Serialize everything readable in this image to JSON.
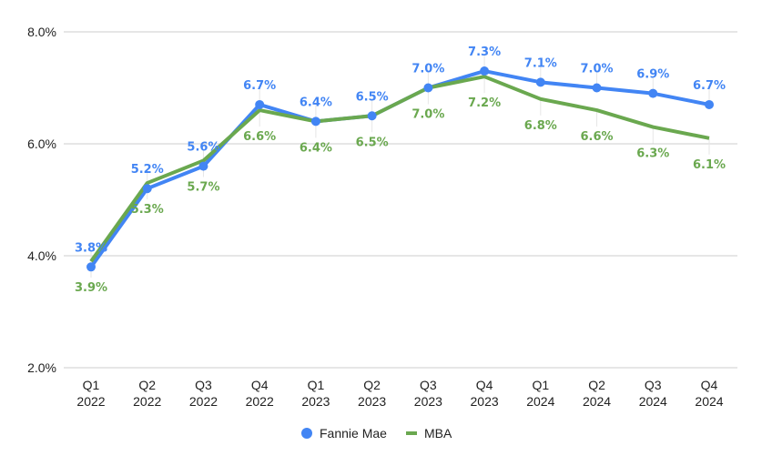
{
  "chart_data": {
    "type": "line",
    "title": "",
    "xlabel": "",
    "ylabel": "",
    "categories": [
      [
        "Q1",
        "2022"
      ],
      [
        "Q2",
        "2022"
      ],
      [
        "Q3",
        "2022"
      ],
      [
        "Q4",
        "2022"
      ],
      [
        "Q1",
        "2023"
      ],
      [
        "Q2",
        "2023"
      ],
      [
        "Q3",
        "2023"
      ],
      [
        "Q4",
        "2023"
      ],
      [
        "Q1",
        "2024"
      ],
      [
        "Q2",
        "2024"
      ],
      [
        "Q3",
        "2024"
      ],
      [
        "Q4",
        "2024"
      ]
    ],
    "ylim": [
      2.0,
      8.0
    ],
    "yticks": [
      2.0,
      4.0,
      6.0,
      8.0
    ],
    "ytick_labels": [
      "2.0%",
      "4.0%",
      "6.0%",
      "8.0%"
    ],
    "grid": true,
    "legend_position": "bottom",
    "series": [
      {
        "name": "Fannie Mae",
        "color": "#4285f4",
        "marker": "circle",
        "label_position": "above",
        "values": [
          3.8,
          5.2,
          5.6,
          6.7,
          6.4,
          6.5,
          7.0,
          7.3,
          7.1,
          7.0,
          6.9,
          6.7
        ],
        "labels": [
          "3.8%",
          "5.2%",
          "5.6%",
          "6.7%",
          "6.4%",
          "6.5%",
          "7.0%",
          "7.3%",
          "7.1%",
          "7.0%",
          "6.9%",
          "6.7%"
        ]
      },
      {
        "name": "MBA",
        "color": "#6aa84f",
        "marker": "none",
        "label_position": "below",
        "values": [
          3.9,
          5.3,
          5.7,
          6.6,
          6.4,
          6.5,
          7.0,
          7.2,
          6.8,
          6.6,
          6.3,
          6.1
        ],
        "labels": [
          "3.9%",
          "5.3%",
          "5.7%",
          "6.6%",
          "6.4%",
          "6.5%",
          "7.0%",
          "7.2%",
          "6.8%",
          "6.6%",
          "6.3%",
          "6.1%"
        ]
      }
    ]
  }
}
